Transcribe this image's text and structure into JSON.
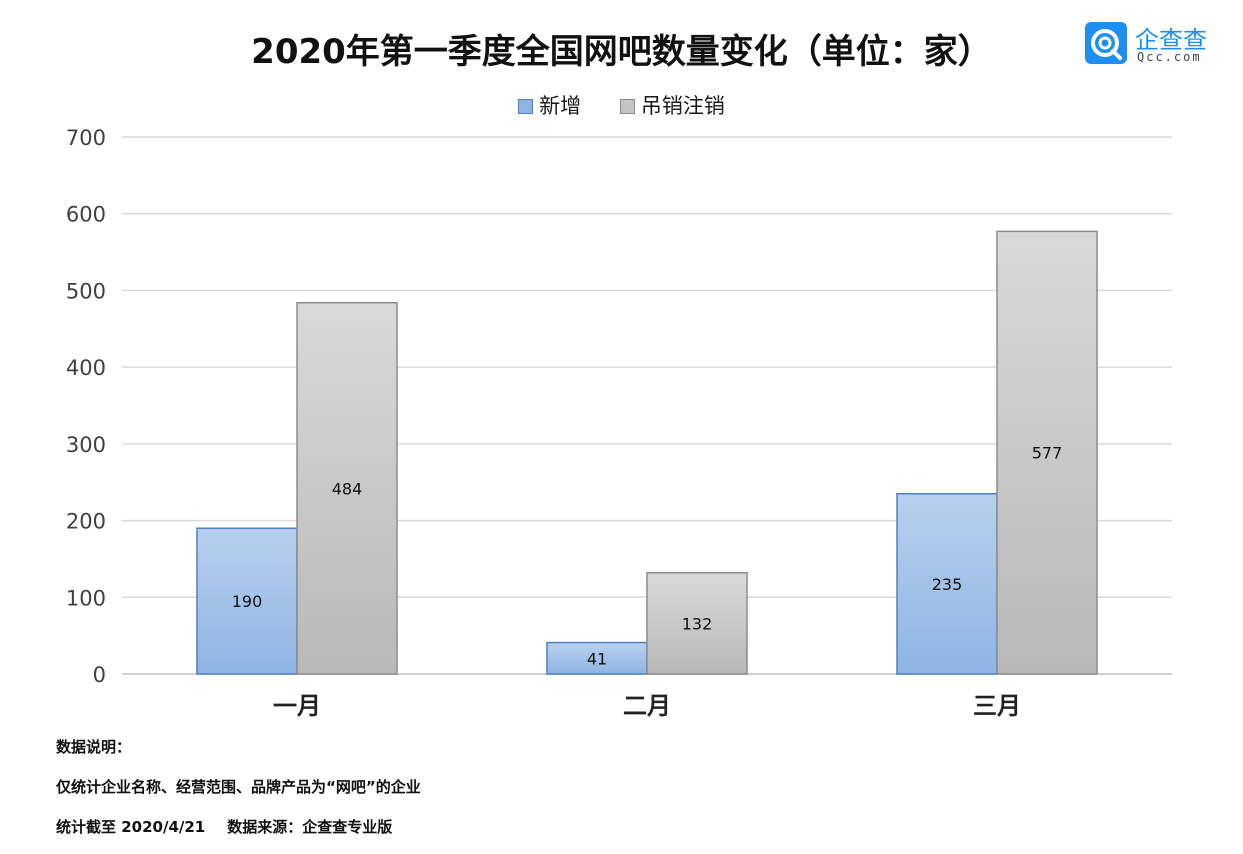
{
  "title": "2020年第一季度全国网吧数量变化（单位：家）",
  "logo": {
    "name": "企查查",
    "sub": "Qcc.com"
  },
  "chart_data": {
    "type": "bar",
    "categories": [
      "一月",
      "二月",
      "三月"
    ],
    "series": [
      {
        "name": "新增",
        "values": [
          190,
          41,
          235
        ],
        "color": "#8fb4e3"
      },
      {
        "name": "吊销注销",
        "values": [
          484,
          132,
          577
        ],
        "color": "#c4c4c4"
      }
    ],
    "ylim": [
      0,
      700
    ],
    "yticks": [
      0,
      100,
      200,
      300,
      400,
      500,
      600,
      700
    ],
    "grid": true,
    "legend": "top-center"
  },
  "notes": {
    "heading": "数据说明：",
    "scope": "仅统计企业名称、经营范围、品牌产品为“网吧”的企业",
    "cutoff": "统计截至 2020/4/21",
    "source": "数据来源：企查查专业版"
  }
}
